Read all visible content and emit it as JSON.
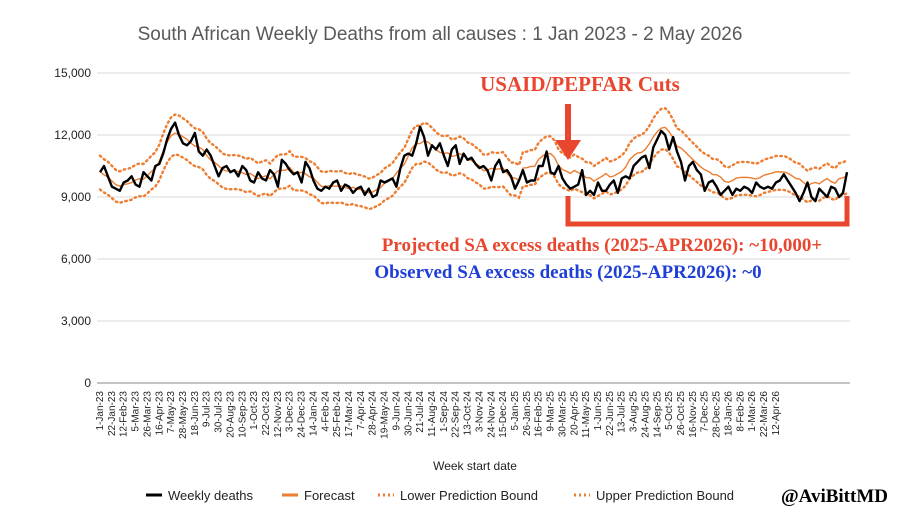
{
  "chart_data": {
    "type": "line",
    "title": "South African Weekly Deaths from all causes : 1 Jan 2023 - 2 May 2026",
    "xlabel": "Week start date",
    "ylabel": "",
    "ylim": [
      0,
      15000
    ],
    "yticks": [
      0,
      3000,
      6000,
      9000,
      12000,
      15000
    ],
    "ytick_labels": [
      "0",
      "3,000",
      "6,000",
      "9,000",
      "12,000",
      "15,000"
    ],
    "grid": "horizontal",
    "legend_position": "bottom",
    "x_start": "2023-01-01",
    "x_end": "2026-04-26",
    "xtick_labels": [
      "1-Jan-23",
      "22-Jan-23",
      "12-Feb-23",
      "5-Mar-23",
      "26-Mar-23",
      "16-Apr-23",
      "7-May-23",
      "28-May-23",
      "18-Jun-23",
      "9-Jul-23",
      "30-Jul-23",
      "20-Aug-23",
      "10-Sep-23",
      "1-Oct-23",
      "22-Oct-23",
      "12-Nov-23",
      "3-Dec-23",
      "24-Dec-23",
      "14-Jan-24",
      "4-Feb-24",
      "25-Feb-24",
      "17-Mar-24",
      "7-Apr-24",
      "28-Apr-24",
      "19-May-24",
      "9-Jun-24",
      "30-Jun-24",
      "21-Jul-24",
      "11-Aug-24",
      "1-Sep-24",
      "22-Sep-24",
      "13-Oct-24",
      "3-Nov-24",
      "24-Nov-24",
      "15-Dec-24",
      "5-Jan-25",
      "26-Jan-25",
      "16-Feb-25",
      "9-Mar-25",
      "30-Mar-25",
      "20-Apr-25",
      "11-May-25",
      "1-Jun-25",
      "22-Jun-25",
      "13-Jul-25",
      "3-Aug-25",
      "24-Aug-25",
      "14-Sep-25",
      "5-Oct-25",
      "26-Oct-25",
      "16-Nov-25",
      "7-Dec-25",
      "28-Dec-25",
      "18-Jan-26",
      "8-Feb-26",
      "1-Mar-26",
      "22-Mar-26",
      "12-Apr-26"
    ],
    "series": [
      {
        "name": "Weekly deaths",
        "color": "#000000",
        "style": "solid",
        "values": [
          10200,
          10500,
          10000,
          9500,
          9400,
          9300,
          9700,
          9800,
          10000,
          9600,
          9500,
          10200,
          10000,
          9800,
          10500,
          10600,
          11100,
          11800,
          12300,
          12600,
          12000,
          11600,
          11500,
          11700,
          12100,
          11200,
          11000,
          11300,
          11000,
          10500,
          10000,
          10400,
          10500,
          10200,
          10300,
          10000,
          10500,
          10300,
          9800,
          9700,
          10200,
          9900,
          9800,
          10300,
          10100,
          9500,
          10800,
          10600,
          10300,
          10100,
          10200,
          9700,
          10700,
          10400,
          9800,
          9400,
          9300,
          9500,
          9400,
          9700,
          9800,
          9300,
          9600,
          9500,
          9200,
          9400,
          9500,
          9100,
          9400,
          9000,
          9100,
          9800,
          9700,
          9800,
          9900,
          9500,
          10400,
          11000,
          11100,
          11000,
          11600,
          12400,
          11900,
          11000,
          11500,
          11300,
          11600,
          11000,
          10500,
          11300,
          11500,
          10600,
          11100,
          10800,
          10900,
          10600,
          10400,
          10500,
          10300,
          9800,
          10500,
          10800,
          10200,
          10300,
          10000,
          9400,
          9800,
          10300,
          9700,
          9800,
          9800,
          10500,
          10500,
          11200,
          10200,
          10100,
          10500,
          9900,
          9600,
          9400,
          9500,
          9600,
          10300,
          9100,
          9300,
          9100,
          9700,
          9300,
          9300,
          9600,
          9800,
          9200,
          9900,
          10000,
          9900,
          10500,
          10700,
          10900,
          11000,
          10400,
          11400,
          11800,
          12200,
          12000,
          11300,
          11900,
          11200,
          10700,
          9800,
          10500,
          10700,
          10300,
          10100,
          9300,
          9700,
          9800,
          9500,
          9100,
          9300,
          9500,
          9100,
          9400,
          9300,
          9500,
          9400,
          9200,
          9700,
          9500,
          9400,
          9500,
          9400,
          9700,
          9800,
          10100,
          9800,
          9500,
          9200,
          8800,
          9200,
          9700,
          9000,
          8800,
          9400,
          9200,
          9000,
          9500,
          9400,
          9000,
          9200,
          10200
        ],
        "note": "weekly values estimated from gridlines"
      },
      {
        "name": "Forecast",
        "color": "#ed7d31",
        "style": "solid"
      },
      {
        "name": "Lower Prediction Bound",
        "color": "#ed7d31",
        "style": "dotted"
      },
      {
        "name": "Upper Prediction Bound",
        "color": "#ed7d31",
        "style": "dotted"
      }
    ],
    "annotations": [
      {
        "text": "USAID/PEPFAR Cuts",
        "color": "#e8462e"
      },
      {
        "text": "Projected SA excess deaths (2025-APR2026): ~10,000+",
        "color": "#e8462e"
      },
      {
        "text": "Observed SA excess deaths (2025-APR2026): ~0",
        "color": "#1f3ed6"
      }
    ],
    "watermark": "@AviBittMD"
  }
}
